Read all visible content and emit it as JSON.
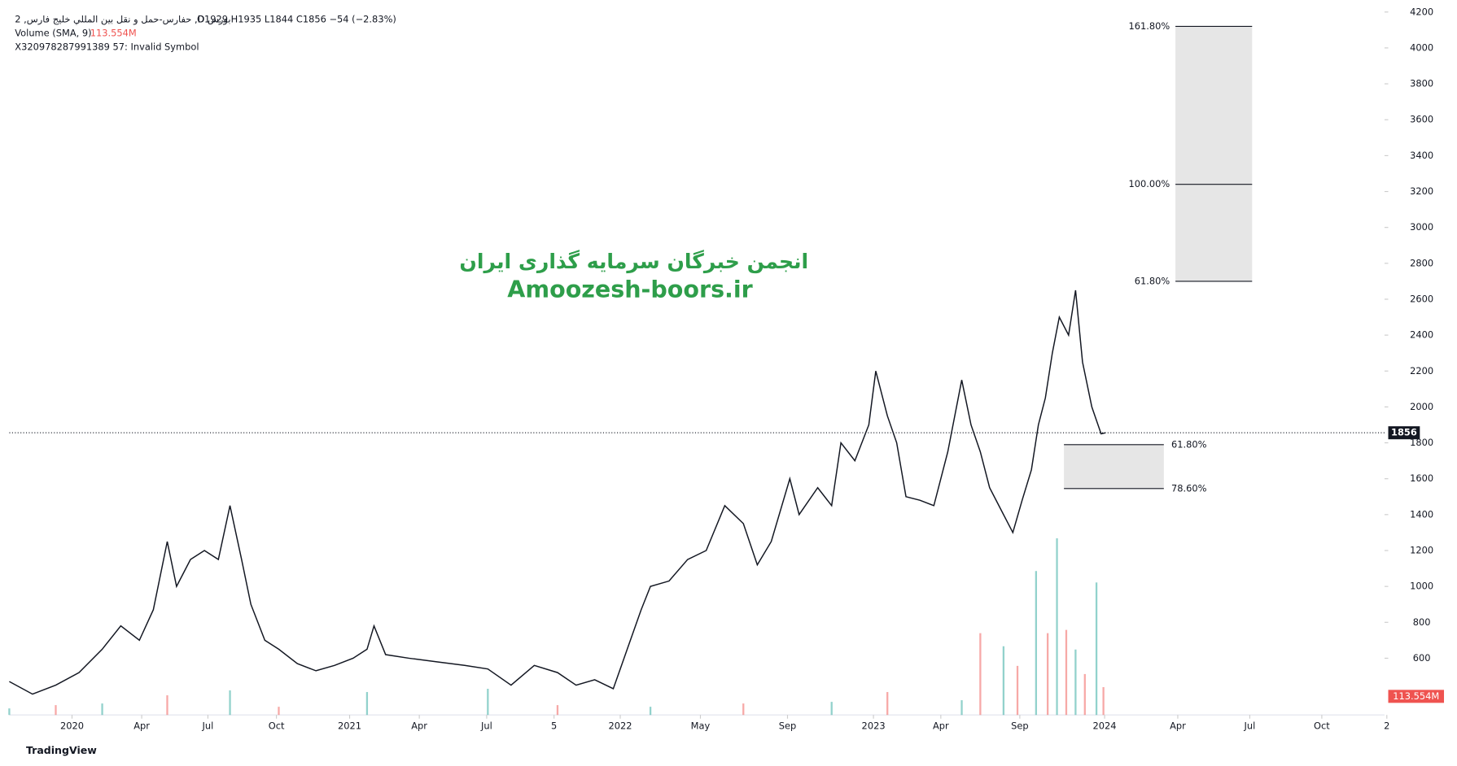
{
  "header": {
    "symbol_line": "حفارس-حمل و نقل بين المللي خليج فارس, 2 ,D بورس",
    "ohlc_line": "O1929  H1935  L1844  C1856  −54 (−2.83%)",
    "volume_line": "Volume (SMA, 9)",
    "volume_value": "113.554M",
    "invalid_line": "X320978287991389 57: Invalid Symbol"
  },
  "watermark": {
    "line1": "انجمن خبرگان سرمایه گذاری ایران",
    "line2": "Amoozesh-boors.ir"
  },
  "footer": "TradingView",
  "chart_data": {
    "type": "line",
    "color": "#131722",
    "x": [
      0,
      20,
      40,
      60,
      80,
      96,
      112,
      124,
      136,
      144,
      156,
      168,
      180,
      190,
      200,
      208,
      220,
      232,
      248,
      264,
      280,
      296,
      308,
      314,
      324,
      344,
      368,
      392,
      412,
      432,
      452,
      472,
      488,
      504,
      520,
      532,
      544,
      552,
      568,
      584,
      600,
      616,
      632,
      644,
      656,
      672,
      680,
      696,
      708,
      716,
      728,
      740,
      746,
      756,
      764,
      772,
      784,
      796,
      808,
      820,
      828,
      836,
      844,
      856,
      864,
      872,
      880,
      886,
      892,
      898,
      904,
      912,
      918,
      924,
      932,
      940,
      944
    ],
    "values": [
      470,
      400,
      450,
      520,
      650,
      780,
      700,
      870,
      1250,
      1000,
      1150,
      1200,
      1150,
      1450,
      1150,
      900,
      700,
      650,
      570,
      530,
      560,
      600,
      650,
      780,
      620,
      600,
      580,
      560,
      540,
      450,
      560,
      520,
      450,
      480,
      430,
      650,
      870,
      1000,
      1030,
      1150,
      1200,
      1450,
      1350,
      1120,
      1250,
      1600,
      1400,
      1550,
      1450,
      1800,
      1700,
      1900,
      2200,
      1950,
      1800,
      1500,
      1480,
      1450,
      1750,
      2150,
      1900,
      1750,
      1550,
      1400,
      1300,
      1480,
      1650,
      1900,
      2050,
      2300,
      2500,
      2400,
      2650,
      2250,
      2000,
      1850,
      1856
    ],
    "last_price": 1856,
    "xlim": [
      0,
      1184
    ],
    "ylim": [
      284,
      4267
    ],
    "yticks": [
      600,
      800,
      1000,
      1200,
      1400,
      1600,
      1800,
      2000,
      2200,
      2400,
      2600,
      2800,
      3000,
      3200,
      3400,
      3600,
      3800,
      4000,
      4200
    ],
    "xticks": [
      {
        "value": 54,
        "label": "2020"
      },
      {
        "value": 114,
        "label": "Apr"
      },
      {
        "value": 171,
        "label": "Jul"
      },
      {
        "value": 230,
        "label": "Oct"
      },
      {
        "value": 293,
        "label": "2021"
      },
      {
        "value": 353,
        "label": "Apr"
      },
      {
        "value": 411,
        "label": "Jul"
      },
      {
        "value": 469,
        "label": "5"
      },
      {
        "value": 526,
        "label": "2022"
      },
      {
        "value": 595,
        "label": "May"
      },
      {
        "value": 670,
        "label": "Sep"
      },
      {
        "value": 744,
        "label": "2023"
      },
      {
        "value": 802,
        "label": "Apr"
      },
      {
        "value": 870,
        "label": "Sep"
      },
      {
        "value": 943,
        "label": "2024"
      },
      {
        "value": 1006,
        "label": "Apr"
      },
      {
        "value": 1068,
        "label": "Jul"
      },
      {
        "value": 1130,
        "label": "Oct"
      },
      {
        "value": 1186,
        "label": "2"
      }
    ],
    "volume_sma": 113.554,
    "volume": [
      {
        "name": "up",
        "color": "rgba(38,166,154,0.5)",
        "x": [
          0,
          80,
          190,
          308,
          412,
          552,
          708,
          820,
          856,
          884,
          902,
          918,
          936
        ],
        "values": [
          40,
          70,
          150,
          140,
          160,
          50,
          80,
          90,
          420,
          880,
          1080,
          400,
          810
        ]
      },
      {
        "name": "down",
        "color": "rgba(239,83,80,0.5)",
        "x": [
          40,
          136,
          232,
          472,
          632,
          756,
          836,
          868,
          894,
          910,
          926,
          942
        ],
        "values": [
          60,
          120,
          50,
          60,
          70,
          140,
          500,
          300,
          500,
          520,
          250,
          170
        ]
      }
    ],
    "fib_upper": {
      "x_range": [
        1004,
        1070
      ],
      "levels": [
        {
          "label": "61.80%",
          "price": 2700
        },
        {
          "label": "100.00%",
          "price": 3240
        },
        {
          "label": "161.80%",
          "price": 4120
        }
      ]
    },
    "fib_lower": {
      "x_range": [
        908,
        994
      ],
      "levels": [
        {
          "label": "61.80%",
          "price": 1790
        },
        {
          "label": "78.60%",
          "price": 1545
        }
      ]
    }
  }
}
